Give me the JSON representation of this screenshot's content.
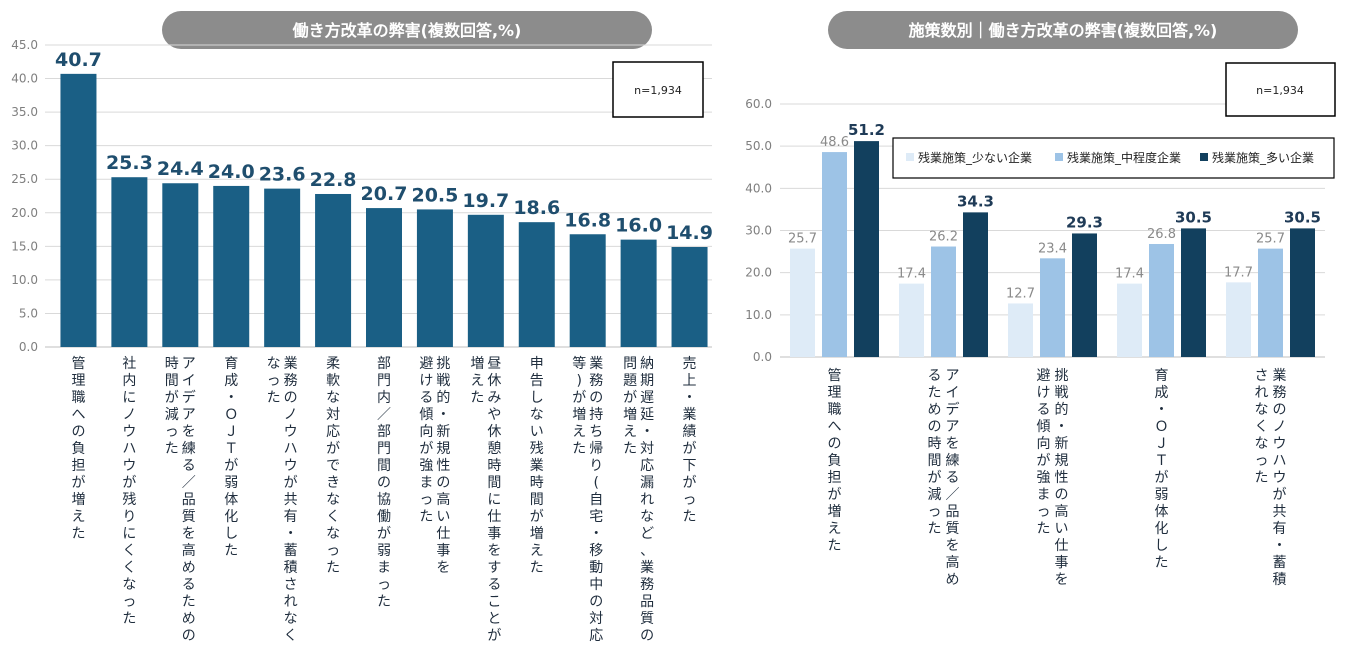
{
  "colors": {
    "left_bar": "#1a5f85",
    "series": [
      "#deebf7",
      "#9dc3e6",
      "#12405e"
    ],
    "pill": "#8c8c8c"
  },
  "chart_data": [
    {
      "type": "bar",
      "title": "働き方改革の弊害(複数回答,%)",
      "note": "n=1,934",
      "ylim": [
        0,
        45
      ],
      "yticks": [
        0,
        5,
        10,
        15,
        20,
        25,
        30,
        35,
        40,
        45
      ],
      "grid": true,
      "categories": [
        "管理職への負担が増えた",
        "社内にノウハウが残りにくくなった",
        "アイデアを練る／品質を高めるための時間が減った",
        "育成・ＯＪＴが弱体化した",
        "業務のノウハウが共有・蓄積されなくなった",
        "柔軟な対応ができなくなった",
        "部門内／部門間の協働が弱まった",
        "挑戦的・新規性の高い仕事を避ける傾向が強まった",
        "昼休みや休憩時間に仕事をすることが増えた",
        "申告しない残業時間が増えた",
        "業務の持ち帰り(自宅・移動中の対応等)が増えた",
        "納期遅延・対応漏れなど、業務品質の問題が増えた",
        "売上・業績が下がった"
      ],
      "category_lines": [
        [
          "管理職への負担が増えた"
        ],
        [
          "社内にノウハウが残りにくくなった"
        ],
        [
          "アイデアを練る／品質を高めるための",
          "時間が減った"
        ],
        [
          "育成・ＯＪＴが弱体化した"
        ],
        [
          "業務のノウハウが共有・蓄積されなく",
          "なった"
        ],
        [
          "柔軟な対応ができなくなった"
        ],
        [
          "部門内／部門間の協働が弱まった"
        ],
        [
          "挑戦的・新規性の高い仕事を",
          "避ける傾向が強まった"
        ],
        [
          "昼休みや休憩時間に仕事をすることが",
          "増えた"
        ],
        [
          "申告しない残業時間が増えた"
        ],
        [
          "業務の持ち帰り(自宅・移動中の対応",
          "等)が増えた"
        ],
        [
          "納期遅延・対応漏れなど、業務品質の",
          "問題が増えた"
        ],
        [
          "売上・業績が下がった"
        ]
      ],
      "values": [
        40.7,
        25.3,
        24.4,
        24.0,
        23.6,
        22.8,
        20.7,
        20.5,
        19.7,
        18.6,
        16.8,
        16.0,
        14.9
      ]
    },
    {
      "type": "bar",
      "title": "施策数別｜働き方改革の弊害(複数回答,%)",
      "note": "n=1,934",
      "ylim": [
        0,
        60
      ],
      "yticks": [
        0,
        10,
        20,
        30,
        40,
        50,
        60
      ],
      "grid": true,
      "legend_position": "top-right",
      "categories": [
        "管理職への負担が増えた",
        "アイデアを練る／品質を高めるための時間が減った",
        "挑戦的・新規性の高い仕事を避ける傾向が強まった",
        "育成・ＯＪＴが弱体化した",
        "業務のノウハウが共有・蓄積されなくなった"
      ],
      "category_lines": [
        [
          "管理職への負担が増えた"
        ],
        [
          "アイデアを練る／品質を高め",
          "るための時間が減った"
        ],
        [
          "挑戦的・新規性の高い仕事を",
          "避ける傾向が強まった"
        ],
        [
          "育成・ＯＪＴが弱体化した"
        ],
        [
          "業務のノウハウが共有・蓄積",
          "されなくなった"
        ]
      ],
      "series": [
        {
          "name": "残業施策_少ない企業",
          "values": [
            25.7,
            17.4,
            12.7,
            17.4,
            17.7
          ]
        },
        {
          "name": "残業施策_中程度企業",
          "values": [
            48.6,
            26.2,
            23.4,
            26.8,
            25.7
          ]
        },
        {
          "name": "残業施策_多い企業",
          "values": [
            51.2,
            34.3,
            29.3,
            30.5,
            30.5
          ]
        }
      ]
    }
  ]
}
